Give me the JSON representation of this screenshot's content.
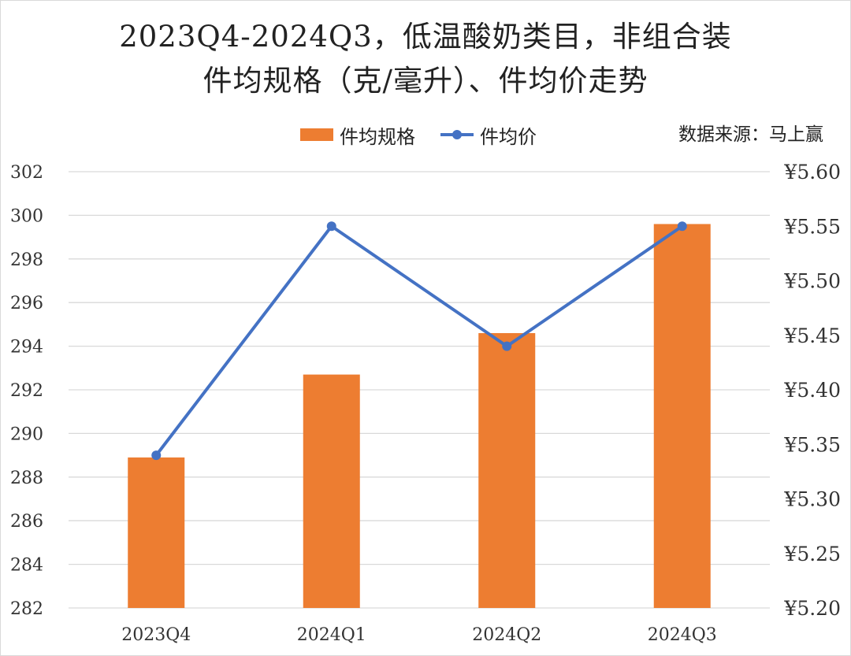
{
  "title_lines": [
    "2023Q4-2024Q3，低温酸奶类目，非组合装",
    "件均规格（克/毫升）、件均价走势"
  ],
  "source_note": "数据来源：马上赢",
  "colors": {
    "bar": "#ED7D31",
    "line": "#4472C4",
    "grid": "#D9D9D9",
    "text": "#333333"
  },
  "chart_data": {
    "type": "bar",
    "title": "2023Q4-2024Q3，低温酸奶类目，非组合装 件均规格（克/毫升）、件均价走势",
    "categories": [
      "2023Q4",
      "2024Q1",
      "2024Q2",
      "2024Q3"
    ],
    "series": [
      {
        "name": "件均规格",
        "type": "bar",
        "axis": "left",
        "values": [
          288.9,
          292.7,
          294.6,
          299.6
        ]
      },
      {
        "name": "件均价",
        "type": "line",
        "axis": "right",
        "values": [
          5.34,
          5.55,
          5.44,
          5.55
        ]
      }
    ],
    "y_left": {
      "min": 282,
      "max": 302,
      "step": 2,
      "ticks": [
        "282",
        "284",
        "286",
        "288",
        "290",
        "292",
        "294",
        "296",
        "298",
        "300",
        "302"
      ]
    },
    "y_right": {
      "min": 5.2,
      "max": 5.6,
      "step": 0.05,
      "ticks": [
        "¥5.20",
        "¥5.25",
        "¥5.30",
        "¥5.35",
        "¥5.40",
        "¥5.45",
        "¥5.50",
        "¥5.55",
        "¥5.60"
      ]
    },
    "grid": true,
    "legend_position": "top"
  }
}
